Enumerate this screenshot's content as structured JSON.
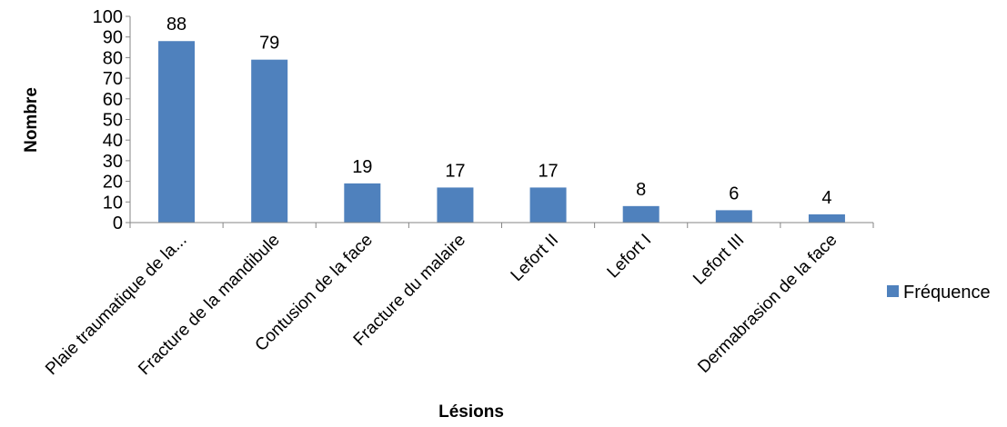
{
  "chart_data": {
    "type": "bar",
    "xlabel": "Lésions",
    "ylabel": "Nombre",
    "ylim": [
      0,
      100
    ],
    "ytick_step": 10,
    "grid": false,
    "legend_position": "right",
    "categories": [
      "Plaie traumatique de la...",
      "Fracture de la mandibule",
      "Contusion de la face",
      "Fracture du malaire",
      "Lefort II",
      "Lefort I",
      "Lefort III",
      "Dermabrasion de la face"
    ],
    "series": [
      {
        "name": "Fréquence",
        "color": "#4f81bd",
        "values": [
          88,
          79,
          19,
          17,
          17,
          8,
          6,
          4
        ]
      }
    ]
  }
}
